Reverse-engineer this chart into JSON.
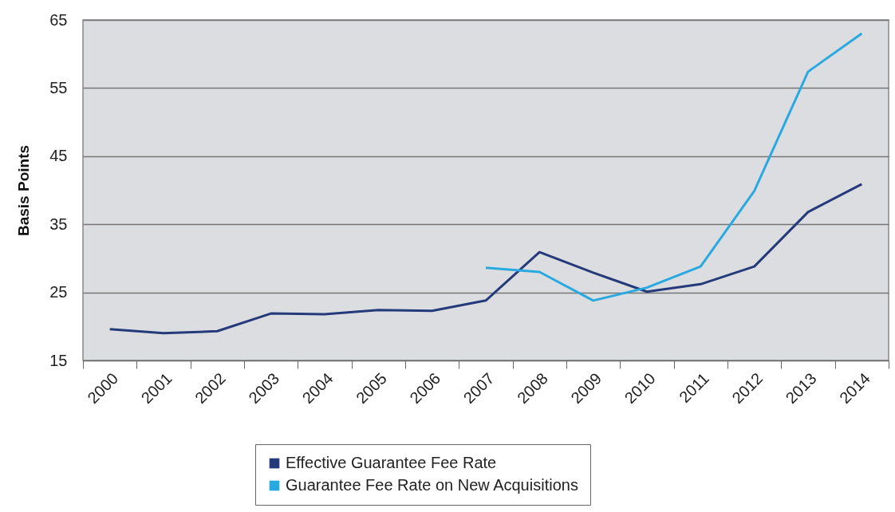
{
  "chart_data": {
    "type": "line",
    "ylabel": "Basis Points",
    "categories": [
      "2000",
      "2001",
      "2002",
      "2003",
      "2004",
      "2005",
      "2006",
      "2007",
      "2008",
      "2009",
      "2010",
      "2011",
      "2012",
      "2013",
      "2014"
    ],
    "series": [
      {
        "name": "Effective Guarantee Fee Rate",
        "color": "#253a7a",
        "values": [
          19.6,
          19.0,
          19.3,
          21.9,
          21.8,
          22.4,
          22.3,
          23.8,
          30.9,
          27.9,
          25.1,
          26.2,
          28.8,
          36.8,
          40.9
        ]
      },
      {
        "name": "Guarantee Fee Rate on New Acquisitions",
        "color": "#29a9e0",
        "values": [
          null,
          null,
          null,
          null,
          null,
          null,
          null,
          28.6,
          28.0,
          23.8,
          25.7,
          28.8,
          39.9,
          57.4,
          63.0
        ]
      }
    ],
    "ylim": [
      15,
      65
    ],
    "yticks": [
      15,
      25,
      35,
      45,
      55,
      65
    ],
    "grid": "y",
    "legend": "bottom",
    "marker": "none",
    "line_style": "solid"
  }
}
